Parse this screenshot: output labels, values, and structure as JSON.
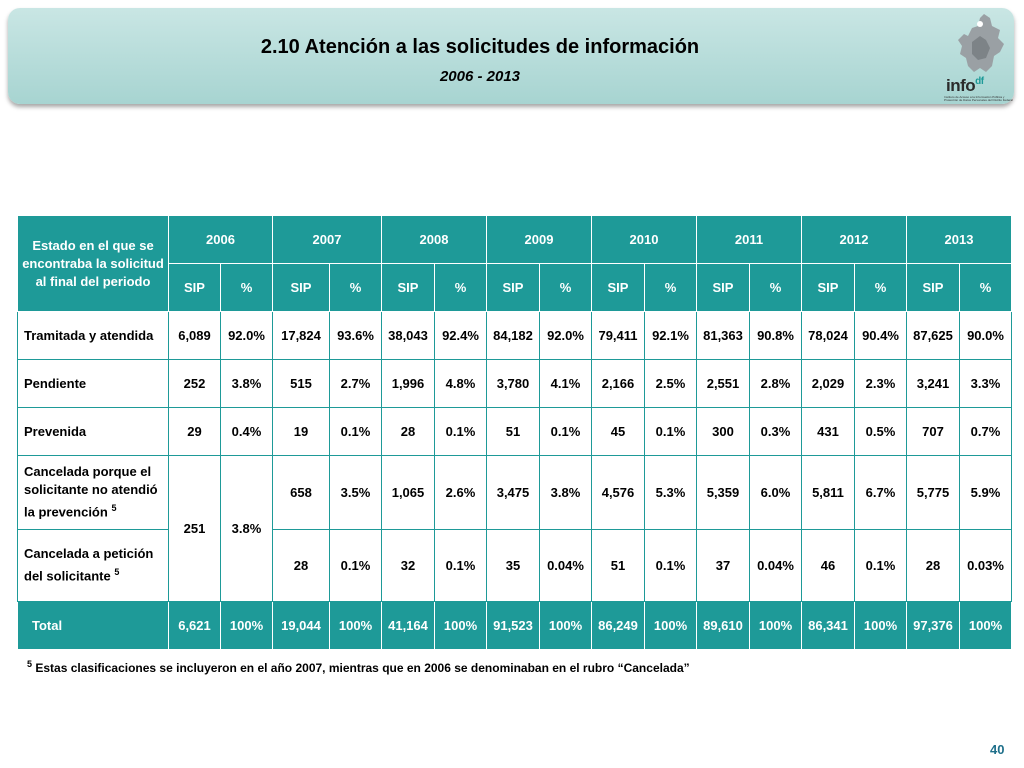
{
  "header": {
    "title": "2.10 Atención a las solicitudes de información",
    "subtitle": "2006 - 2013"
  },
  "logo": {
    "text": "info",
    "superscript": "df",
    "tagline": "Instituto de Acceso a la Información Pública y Protección de Datos Personales del Distrito Federal",
    "icon": "df-map-icon"
  },
  "table": {
    "corner_header": "Estado en el que se encontraba la solicitud al final del periodo",
    "years": [
      "2006",
      "2007",
      "2008",
      "2009",
      "2010",
      "2011",
      "2012",
      "2013"
    ],
    "sub_headers": [
      "SIP",
      "%"
    ],
    "rows": [
      {
        "label": "Tramitada y atendida",
        "cells": [
          "6,089",
          "92.0%",
          "17,824",
          "93.6%",
          "38,043",
          "92.4%",
          "84,182",
          "92.0%",
          "79,411",
          "92.1%",
          "81,363",
          "90.8%",
          "78,024",
          "90.4%",
          "87,625",
          "90.0%"
        ]
      },
      {
        "label": "Pendiente",
        "cells": [
          "252",
          "3.8%",
          "515",
          "2.7%",
          "1,996",
          "4.8%",
          "3,780",
          "4.1%",
          "2,166",
          "2.5%",
          "2,551",
          "2.8%",
          "2,029",
          "2.3%",
          "3,241",
          "3.3%"
        ]
      },
      {
        "label": "Prevenida",
        "cells": [
          "29",
          "0.4%",
          "19",
          "0.1%",
          "28",
          "0.1%",
          "51",
          "0.1%",
          "45",
          "0.1%",
          "300",
          "0.3%",
          "431",
          "0.5%",
          "707",
          "0.7%"
        ]
      },
      {
        "label": "Cancelada porque el solicitante no atendió la prevención",
        "sup": "5",
        "cells_2006": [
          "251",
          "3.8%"
        ],
        "cells": [
          "658",
          "3.5%",
          "1,065",
          "2.6%",
          "3,475",
          "3.8%",
          "4,576",
          "5.3%",
          "5,359",
          "6.0%",
          "5,811",
          "6.7%",
          "5,775",
          "5.9%"
        ]
      },
      {
        "label": "Cancelada a petición del solicitante",
        "sup": "5",
        "cells": [
          "28",
          "0.1%",
          "32",
          "0.1%",
          "35",
          "0.04%",
          "51",
          "0.1%",
          "37",
          "0.04%",
          "46",
          "0.1%",
          "28",
          "0.03%"
        ]
      },
      {
        "label": "Total",
        "cells": [
          "6,621",
          "100%",
          "19,044",
          "100%",
          "41,164",
          "100%",
          "91,523",
          "100%",
          "86,249",
          "100%",
          "89,610",
          "100%",
          "86,341",
          "100%",
          "97,376",
          "100%"
        ]
      }
    ]
  },
  "footnote": {
    "sup": "5",
    "text": "Estas clasificaciones se incluyeron en el  año 2007, mientras que en 2006 se denominaban en el rubro “Cancelada”"
  },
  "page_number": "40",
  "colors": {
    "header_teal": "#1e9a98",
    "band": "#b4dbd8"
  }
}
